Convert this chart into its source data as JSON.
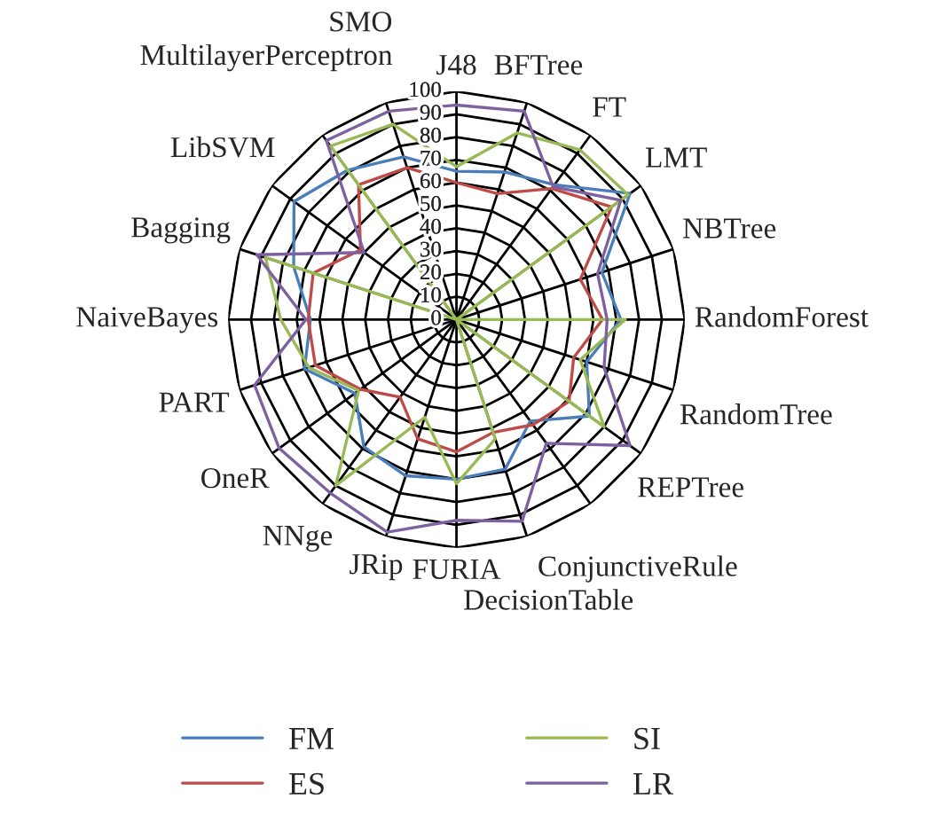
{
  "chart_data": {
    "type": "radar",
    "categories": [
      "J48",
      "BFTree",
      "FT",
      "LMT",
      "NBTree",
      "RandomForest",
      "RandomTree",
      "REPTree",
      "ConjunctiveRule",
      "DecisionTable",
      "FURIA",
      "JRip",
      "NNge",
      "OneR",
      "PART",
      "NaiveBayes",
      "Bagging",
      "LibSVM",
      "MultilayerPerceptron",
      "SMO"
    ],
    "ylim": [
      0,
      100
    ],
    "yticks": [
      0,
      10,
      20,
      30,
      40,
      50,
      60,
      70,
      80,
      90,
      100
    ],
    "grid": true,
    "legend": "bottom",
    "series": [
      {
        "name": "FM",
        "color": "#4a7ebb",
        "values": [
          65,
          68,
          73,
          94,
          67,
          72,
          60,
          72,
          55,
          69,
          70,
          72,
          69,
          55,
          70,
          64,
          75,
          88,
          81,
          75
        ]
      },
      {
        "name": "ES",
        "color": "#be4b48",
        "values": [
          60,
          58,
          71,
          84,
          57,
          64,
          54,
          61,
          57,
          52,
          58,
          55,
          42,
          52,
          65,
          65,
          66,
          52,
          73,
          70
        ]
      },
      {
        "name": "SI",
        "color": "#98b954",
        "values": [
          67,
          86,
          92,
          93,
          0,
          74,
          57,
          80,
          0,
          55,
          72,
          45,
          90,
          53,
          68,
          77,
          88,
          0,
          94,
          90
        ]
      },
      {
        "name": "LR",
        "color": "#7d60a0",
        "values": [
          94,
          96,
          72,
          89,
          65,
          66,
          68,
          94,
          67,
          93,
          88,
          98,
          94,
          96,
          93,
          66,
          92,
          50,
          97,
          96
        ]
      }
    ]
  }
}
